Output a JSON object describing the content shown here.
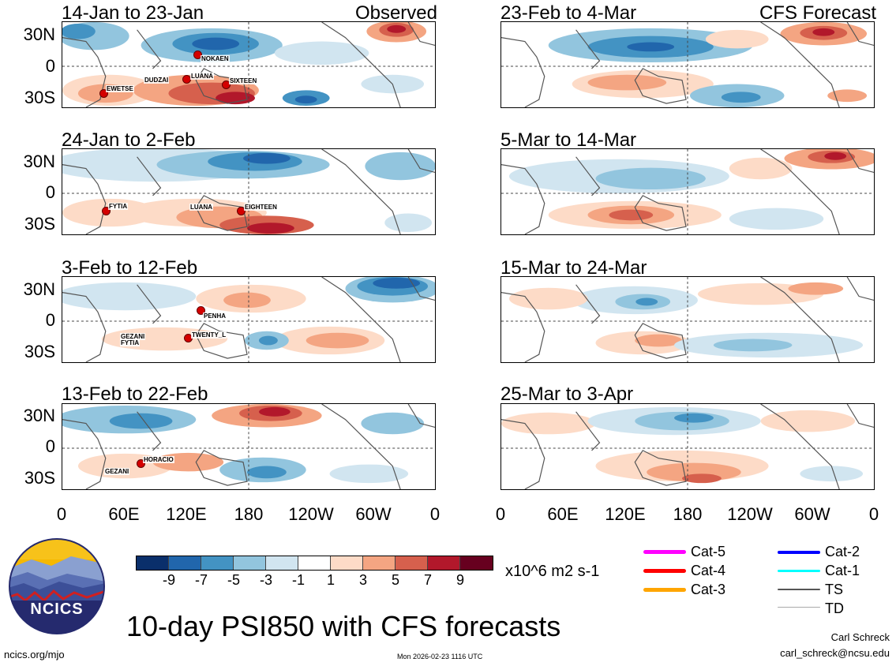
{
  "panels_left": [
    {
      "title": "14-Jan to 23-Jan",
      "tag": "Observed"
    },
    {
      "title": "24-Jan to 2-Feb",
      "tag": ""
    },
    {
      "title": "3-Feb to 12-Feb",
      "tag": ""
    },
    {
      "title": "13-Feb to 22-Feb",
      "tag": ""
    }
  ],
  "panels_right": [
    {
      "title": "23-Feb to 4-Mar",
      "tag": "CFS Forecast"
    },
    {
      "title": "5-Mar to 14-Mar",
      "tag": ""
    },
    {
      "title": "15-Mar to 24-Mar",
      "tag": ""
    },
    {
      "title": "25-Mar to 3-Apr",
      "tag": ""
    }
  ],
  "lat_labels": [
    "30N",
    "0",
    "30S"
  ],
  "lon_labels": [
    "0",
    "60E",
    "120E",
    "180",
    "120W",
    "60W",
    "0"
  ],
  "storms": {
    "p0": [
      "NOKAEN",
      "DUDZAI",
      "LUANA",
      "SIXTEEN",
      "EWETSE"
    ],
    "p1": [
      "FYTIA",
      "LUANA",
      "EIGHTEEN"
    ],
    "p2": [
      "PENHA",
      "GEZANI",
      "FYTIA",
      "TWENTY_L"
    ],
    "p3": [
      "HORACIO",
      "GEZANI"
    ]
  },
  "colorbar": {
    "colors": [
      "#0a2f6b",
      "#2166ac",
      "#4393c3",
      "#92c5de",
      "#d1e5f0",
      "#ffffff",
      "#fddbc7",
      "#f4a582",
      "#d6604d",
      "#b2182b",
      "#67001f"
    ],
    "labels": [
      "-9",
      "-7",
      "-5",
      "-3",
      "-1",
      "1",
      "3",
      "5",
      "7",
      "9"
    ],
    "units": "x10^6 m2 s-1"
  },
  "legend": [
    {
      "label": "Cat-5",
      "color": "#ff00ff"
    },
    {
      "label": "Cat-4",
      "color": "#ff0000"
    },
    {
      "label": "Cat-3",
      "color": "#ffa500"
    },
    {
      "label": "Cat-2",
      "color": "#0000ff"
    },
    {
      "label": "Cat-1",
      "color": "#00ffff"
    },
    {
      "label": "TS",
      "color": "#555555"
    },
    {
      "label": "TD",
      "color": "#aaaaaa"
    }
  ],
  "logo_text": "NCICS",
  "main_title": "10-day PSI850 with CFS forecasts",
  "author": "Carl Schreck",
  "email": "carl_schreck@ncsu.edu",
  "website": "ncics.org/mjo",
  "timestamp": "Mon 2026-02-23 1116 UTC"
}
